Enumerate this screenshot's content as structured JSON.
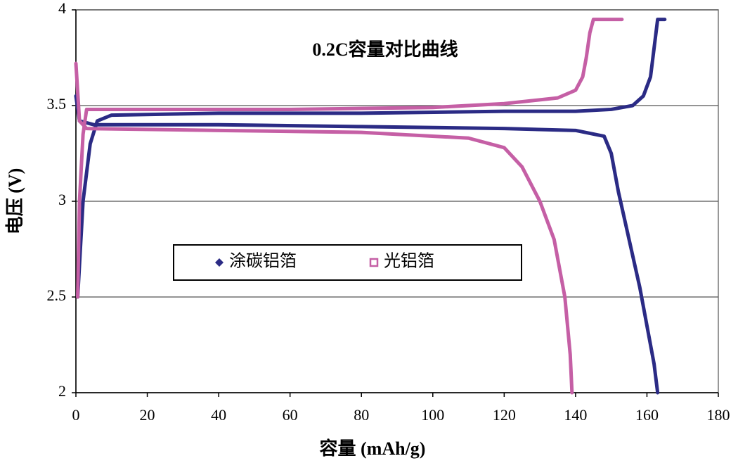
{
  "chart_data": {
    "type": "line",
    "title": "0.2C容量对比曲线",
    "x_label": "容量 (mAh/g)",
    "y_label": "电压 (V)",
    "xlim": [
      0,
      180
    ],
    "xticks": [
      0,
      20,
      40,
      60,
      80,
      100,
      120,
      140,
      160,
      180
    ],
    "ylim": [
      2,
      4
    ],
    "yticks": [
      2,
      2.5,
      3,
      3.5,
      4
    ],
    "grid": true,
    "series": [
      {
        "name": "涂碳铝箔",
        "color": "#2b2b85",
        "x": [
          0.5,
          2,
          4,
          6,
          10,
          40,
          80,
          120,
          140,
          150,
          156,
          159,
          161,
          162,
          163,
          165,
          null,
          0,
          1,
          5,
          40,
          80,
          120,
          140,
          148,
          150,
          152,
          155,
          158,
          160,
          162,
          163
        ],
        "values": [
          2.5,
          3.0,
          3.3,
          3.42,
          3.45,
          3.46,
          3.46,
          3.47,
          3.47,
          3.48,
          3.5,
          3.55,
          3.65,
          3.8,
          3.95,
          3.95,
          null,
          3.55,
          3.42,
          3.4,
          3.4,
          3.39,
          3.38,
          3.37,
          3.34,
          3.25,
          3.05,
          2.8,
          2.55,
          2.35,
          2.15,
          2.0
        ]
      },
      {
        "name": "光铝箔",
        "color": "#c55fa5",
        "x": [
          0.5,
          1,
          2,
          3,
          10,
          60,
          100,
          120,
          135,
          140,
          142,
          143,
          144,
          145,
          153,
          null,
          0,
          1,
          3,
          40,
          80,
          110,
          120,
          125,
          130,
          134,
          137,
          138.5,
          139
        ],
        "values": [
          2.5,
          3.0,
          3.35,
          3.48,
          3.48,
          3.48,
          3.49,
          3.51,
          3.54,
          3.58,
          3.65,
          3.75,
          3.88,
          3.95,
          3.95,
          null,
          3.72,
          3.42,
          3.38,
          3.37,
          3.36,
          3.33,
          3.28,
          3.18,
          3.0,
          2.8,
          2.5,
          2.2,
          2.0
        ]
      }
    ]
  }
}
